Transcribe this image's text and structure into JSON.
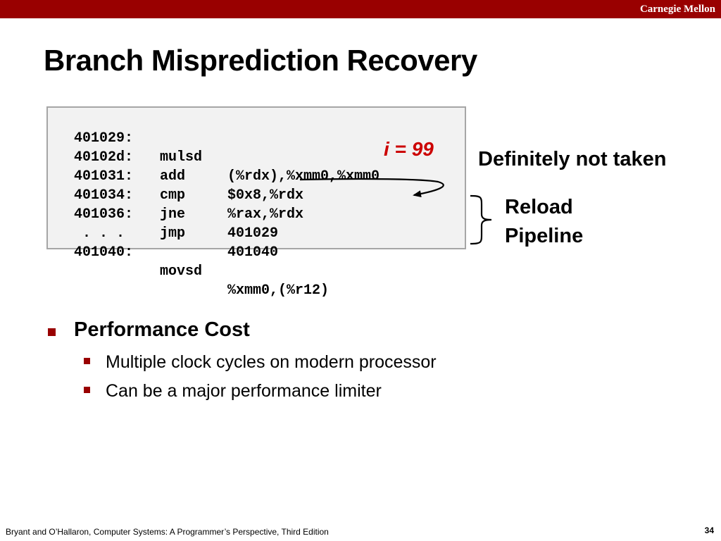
{
  "header": {
    "brand": "Carnegie Mellon",
    "bar_color": "#990000"
  },
  "slide": {
    "title": "Branch Misprediction Recovery"
  },
  "code": {
    "lines": [
      {
        "addr": "401029:",
        "op": "mulsd",
        "arg": "(%rdx),%xmm0,%xmm0"
      },
      {
        "addr": "40102d:",
        "op": "add",
        "arg": "$0x8,%rdx"
      },
      {
        "addr": "401031:",
        "op": "cmp",
        "arg": "%rax,%rdx"
      },
      {
        "addr": "401034:",
        "op": "jne",
        "arg": "401029"
      },
      {
        "addr": "401036:",
        "op": "jmp",
        "arg": "401040"
      },
      {
        "addr": " . . .",
        "op": "",
        "arg": ""
      },
      {
        "addr": "401040:",
        "op": "movsd",
        "arg": "%xmm0,(%r12)"
      }
    ],
    "iteration_label": "i = 99",
    "iteration_color": "#cc0000"
  },
  "annotations": {
    "not_taken": "Definitely not taken",
    "reload_line1": "Reload",
    "reload_line2": "Pipeline"
  },
  "bullets": {
    "main": "Performance Cost",
    "sub": [
      "Multiple clock cycles on modern processor",
      "Can be a major performance limiter"
    ]
  },
  "footer": {
    "citation": "Bryant and O’Hallaron, Computer Systems: A Programmer’s Perspective, Third Edition",
    "page": "34"
  }
}
